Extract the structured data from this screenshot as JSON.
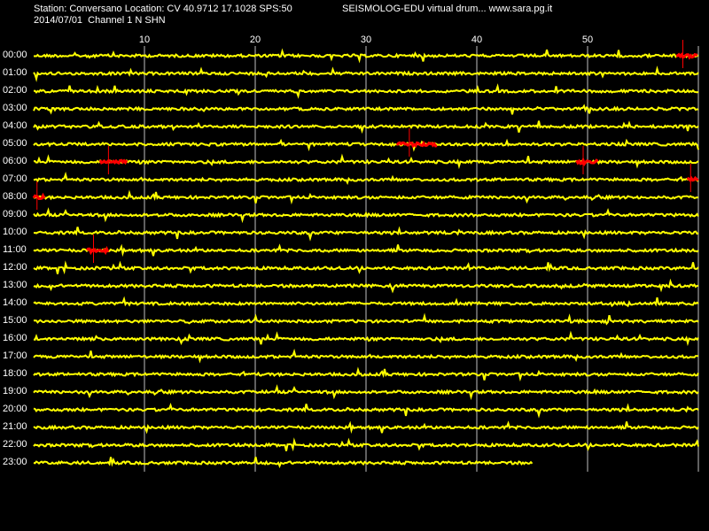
{
  "header": {
    "line1_left": "Station: Conversano Location: CV 40.9712 17.1028 SPS:50",
    "line1_right": "SEISMOLOG-EDU virtual drum... www.sara.pg.it",
    "line2": "2014/07/01  Channel 1 N SHN"
  },
  "minute_labels": [
    "10",
    "20",
    "30",
    "40",
    "50"
  ],
  "hour_labels": [
    "00:00",
    "01:00",
    "02:00",
    "03:00",
    "04:00",
    "05:00",
    "06:00",
    "07:00",
    "08:00",
    "09:00",
    "10:00",
    "11:00",
    "12:00",
    "13:00",
    "14:00",
    "15:00",
    "16:00",
    "17:00",
    "18:00",
    "19:00",
    "20:00",
    "21:00",
    "22:00",
    "23:00"
  ],
  "colors": {
    "background": "#000000",
    "trace": "#ffff00",
    "event": "#ff0000",
    "grid": "#c0c0c0",
    "text": "#ffffff"
  },
  "last_trace_end_minute": 45,
  "events": [
    {
      "hour": 0,
      "start_min": 58.0,
      "end_min": 60
    },
    {
      "hour": 5,
      "start_min": 32.8,
      "end_min": 36.5
    },
    {
      "hour": 6,
      "start_min": 6.0,
      "end_min": 8.5
    },
    {
      "hour": 6,
      "start_min": 49.0,
      "end_min": 51.0
    },
    {
      "hour": 7,
      "start_min": 59.0,
      "end_min": 60
    },
    {
      "hour": 8,
      "start_min": 0.0,
      "end_min": 1.0
    },
    {
      "hour": 11,
      "start_min": 4.8,
      "end_min": 6.8
    }
  ]
}
